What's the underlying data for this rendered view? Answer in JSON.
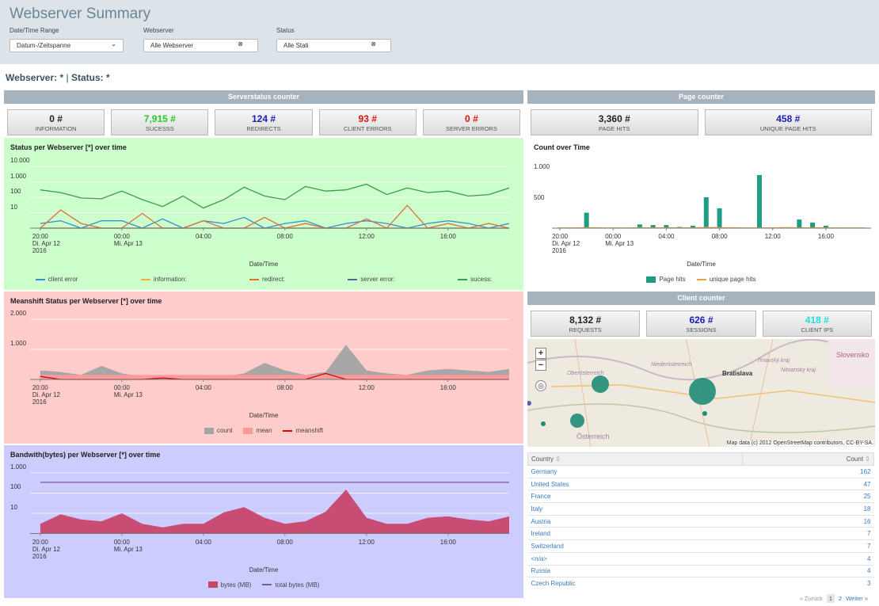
{
  "header": {
    "title": "Webserver Summary",
    "filters": [
      {
        "label": "Date/Time Range",
        "value": "Datum-/Zeitspanne"
      },
      {
        "label": "Webserver",
        "value": "Alle Webserver"
      },
      {
        "label": "Status",
        "value": "Alle Stati"
      }
    ]
  },
  "summary_line": [
    "Webserver: *",
    "|",
    "Status: *"
  ],
  "panels": {
    "serverstatus": "Serverstatus counter",
    "page": "Page counter",
    "client": "Client counter"
  },
  "counters": {
    "serverstatus": [
      {
        "value": "0",
        "unit": "#",
        "label": "INFORMATION",
        "color": "#222222"
      },
      {
        "value": "7,915",
        "unit": "#",
        "label": "SUCESSS",
        "color": "#22cc22"
      },
      {
        "value": "124",
        "unit": "#",
        "label": "REDIRECTS",
        "color": "#1a1ab8"
      },
      {
        "value": "93",
        "unit": "#",
        "label": "CLIENT ERRORS",
        "color": "#e01010"
      },
      {
        "value": "0",
        "unit": "#",
        "label": "SERVER ERRORS",
        "color": "#e01010"
      }
    ],
    "page": [
      {
        "value": "3,360",
        "unit": "#",
        "label": "PAGE HITS",
        "color": "#222222"
      },
      {
        "value": "458",
        "unit": "#",
        "label": "UNIQUE PAGE HITS",
        "color": "#1a1ab8"
      }
    ],
    "client": [
      {
        "value": "8,132",
        "unit": "#",
        "label": "REQUESTS",
        "color": "#222222"
      },
      {
        "value": "626",
        "unit": "#",
        "label": "SESSIONS",
        "color": "#1a1ab8"
      },
      {
        "value": "418",
        "unit": "#",
        "label": "CLIENT IPS",
        "color": "#22dddd"
      }
    ]
  },
  "chart_data": [
    {
      "type": "line",
      "title": "Status per Webserver [*] over time",
      "x_label": "Date/Time",
      "background": "#ccffcc",
      "log_y": true,
      "grid": true,
      "x": [
        20,
        21,
        22,
        23,
        24,
        25,
        26,
        27,
        28,
        29,
        30,
        31,
        32,
        33,
        34,
        35,
        36,
        37,
        38,
        39,
        40,
        41,
        42,
        43
      ],
      "xlim": [
        19.5,
        43
      ],
      "xticks": [
        {
          "value": 20,
          "label": "20:00\nDi. Apr 12\n2016"
        },
        {
          "value": 24,
          "label": "00:00\nMi. Apr 13"
        },
        {
          "value": 28,
          "label": "04:00"
        },
        {
          "value": 32,
          "label": "08:00"
        },
        {
          "value": 36,
          "label": "12:00"
        },
        {
          "value": 40,
          "label": "16:00"
        }
      ],
      "ylim": [
        1,
        10000
      ],
      "yticks": [
        10,
        100,
        {
          "value": 1000,
          "label": "1.000"
        },
        {
          "value": 10000,
          "label": "10.000"
        }
      ],
      "series": [
        {
          "name": "client error",
          "kind": "line",
          "color": "#3a8fd0",
          "values": [
            2,
            3,
            1,
            3,
            3,
            1,
            4,
            1,
            3,
            2,
            5,
            1,
            2,
            3,
            1,
            2,
            3,
            2,
            1,
            2,
            3,
            2,
            1,
            2
          ]
        },
        {
          "name": "information:",
          "kind": "line",
          "color": "#e8b53a",
          "values": [
            0,
            0,
            0,
            0,
            0,
            0,
            0,
            0,
            0,
            0,
            0,
            0,
            0,
            0,
            0,
            0,
            0,
            0,
            0,
            0,
            0,
            0,
            0,
            0
          ]
        },
        {
          "name": "redirect:",
          "kind": "line",
          "color": "#e0703a",
          "values": [
            1,
            15,
            2,
            1,
            1,
            9,
            1,
            1,
            3,
            1,
            1,
            5,
            1,
            2,
            1,
            1,
            4,
            1,
            30,
            1,
            2,
            1,
            2,
            1
          ]
        },
        {
          "name": "server error:",
          "kind": "line",
          "color": "#5a5fa8",
          "values": [
            0,
            0,
            0,
            0,
            0,
            0,
            0,
            0,
            0,
            0,
            0,
            0,
            0,
            0,
            0,
            0,
            0,
            0,
            0,
            0,
            0,
            0,
            0,
            0
          ]
        },
        {
          "name": "sucess:",
          "kind": "line",
          "color": "#3a9b50",
          "values": [
            300,
            200,
            90,
            80,
            250,
            70,
            25,
            120,
            20,
            70,
            450,
            120,
            70,
            500,
            250,
            300,
            700,
            150,
            400,
            200,
            250,
            120,
            150,
            400
          ]
        }
      ]
    },
    {
      "type": "line",
      "title": "Meanshift Status per Webserver [*] over time",
      "x_label": "Date/Time",
      "background": "#ffcccc",
      "log_y": false,
      "grid": true,
      "x": [
        20,
        21,
        22,
        23,
        24,
        25,
        26,
        27,
        28,
        29,
        30,
        31,
        32,
        33,
        34,
        35,
        36,
        37,
        38,
        39,
        40,
        41,
        42,
        43
      ],
      "xlim": [
        19.5,
        43
      ],
      "xticks": [
        {
          "value": 20,
          "label": "20:00\nDi. Apr 12\n2016"
        },
        {
          "value": 24,
          "label": "00:00\nMi. Apr 13"
        },
        {
          "value": 28,
          "label": "04:00"
        },
        {
          "value": 32,
          "label": "08:00"
        },
        {
          "value": 36,
          "label": "12:00"
        },
        {
          "value": 40,
          "label": "16:00"
        }
      ],
      "ylim": [
        0,
        2200
      ],
      "yticks": [
        {
          "value": 1000,
          "label": "1.000"
        },
        {
          "value": 2000,
          "label": "2.000"
        }
      ],
      "series": [
        {
          "name": "count",
          "kind": "area",
          "color": "#a3a3a3",
          "values": [
            300,
            250,
            150,
            450,
            200,
            100,
            100,
            150,
            120,
            100,
            200,
            550,
            300,
            150,
            250,
            1150,
            300,
            200,
            150,
            300,
            350,
            300,
            250,
            350
          ]
        },
        {
          "name": "mean",
          "kind": "area",
          "color": "#ff9999",
          "values": [
            150,
            150,
            150,
            150,
            150,
            150,
            150,
            150,
            150,
            150,
            150,
            150,
            150,
            150,
            150,
            150,
            150,
            150,
            150,
            150,
            150,
            150,
            150,
            150
          ]
        },
        {
          "name": "meanshift",
          "kind": "line",
          "color": "#e00000",
          "values": [
            100,
            0,
            0,
            0,
            0,
            0,
            50,
            0,
            0,
            0,
            0,
            0,
            0,
            0,
            200,
            0,
            0,
            0,
            0,
            0,
            0,
            0,
            0,
            0
          ]
        }
      ]
    },
    {
      "type": "line",
      "title": "Bandwith(bytes) per Webserver [*] over time",
      "x_label": "Date/Time",
      "background": "#ccccff",
      "log_y": true,
      "grid": true,
      "x": [
        20,
        21,
        22,
        23,
        24,
        25,
        26,
        27,
        28,
        29,
        30,
        31,
        32,
        33,
        34,
        35,
        36,
        37,
        38,
        39,
        40,
        41,
        42,
        43
      ],
      "xlim": [
        19.5,
        43
      ],
      "xticks": [
        {
          "value": 20,
          "label": "20:00\nDi. Apr 12\n2016"
        },
        {
          "value": 24,
          "label": "00:00\nMi. Apr 13"
        },
        {
          "value": 28,
          "label": "04:00"
        },
        {
          "value": 32,
          "label": "08:00"
        },
        {
          "value": 36,
          "label": "12:00"
        },
        {
          "value": 40,
          "label": "16:00"
        }
      ],
      "ylim": [
        1,
        3000
      ],
      "yticks": [
        10,
        100,
        {
          "value": 1000,
          "label": "1.000"
        }
      ],
      "series": [
        {
          "name": "bytes (MB)",
          "kind": "area",
          "color": "#c8456a",
          "values": [
            3,
            9,
            5,
            4,
            10,
            3,
            2,
            3,
            3,
            11,
            20,
            6,
            3,
            4,
            12,
            150,
            6,
            3,
            3,
            6,
            7,
            5,
            4,
            7
          ]
        },
        {
          "name": "total bytes (MB)",
          "kind": "line",
          "color": "#7a5a9a",
          "values": [
            340,
            340,
            340,
            340,
            340,
            340,
            340,
            340,
            340,
            340,
            340,
            340,
            340,
            340,
            340,
            340,
            340,
            340,
            340,
            340,
            340,
            340,
            340,
            340
          ]
        }
      ]
    },
    {
      "type": "bar",
      "title": "Count over Time",
      "x_label": "Date/Time",
      "background": "#ffffff",
      "log_y": false,
      "grid": false,
      "x": [
        20,
        21,
        22,
        23,
        24,
        25,
        26,
        27,
        28,
        29,
        30,
        31,
        32,
        33,
        34,
        35,
        36,
        37,
        38,
        39,
        40,
        41,
        42,
        43
      ],
      "xlim": [
        19.4,
        43.4
      ],
      "xticks": [
        {
          "value": 20,
          "label": "20:00\nDi. Apr 12\n2016"
        },
        {
          "value": 24,
          "label": "00:00\nMi. Apr 13"
        },
        {
          "value": 28,
          "label": "04:00"
        },
        {
          "value": 32,
          "label": "08:00"
        },
        {
          "value": 36,
          "label": "12:00"
        },
        {
          "value": 40,
          "label": "16:00"
        }
      ],
      "ylim": [
        0,
        1130
      ],
      "yticks": [
        500,
        {
          "value": 1000,
          "label": "1.000"
        }
      ],
      "series": [
        {
          "name": "Page hits",
          "kind": "bar",
          "color": "#1f9c84",
          "values": [
            10,
            0,
            250,
            0,
            0,
            0,
            60,
            50,
            50,
            20,
            40,
            500,
            320,
            0,
            0,
            860,
            0,
            0,
            140,
            90,
            40,
            10,
            0,
            0
          ]
        },
        {
          "name": "unique page hits",
          "kind": "line",
          "color": "#e8a23a",
          "values": [
            5,
            3,
            8,
            4,
            3,
            2,
            6,
            5,
            7,
            4,
            5,
            10,
            8,
            6,
            3,
            2,
            4,
            9,
            5,
            6,
            4,
            3,
            2,
            3
          ]
        }
      ]
    }
  ],
  "map": {
    "places": [
      "Slovensko",
      "Trnavský kraj",
      "Nitriansky kraj",
      "Bratislava",
      "Niederösterreich",
      "Oberösterreich",
      "Österreich"
    ],
    "attribution": "Map data (c) 2012 OpenStreetMap contributors, CC-BY-SA."
  },
  "table": {
    "columns": [
      "Country",
      "Count"
    ],
    "rows": [
      [
        "Germany",
        "162"
      ],
      [
        "United States",
        "47"
      ],
      [
        "France",
        "25"
      ],
      [
        "Italy",
        "18"
      ],
      [
        "Austria",
        "16"
      ],
      [
        "Ireland",
        "7"
      ],
      [
        "Switzerland",
        "7"
      ],
      [
        "<n/a>",
        "4"
      ],
      [
        "Russia",
        "4"
      ],
      [
        "Czech Republic",
        "3"
      ]
    ]
  },
  "pagination": [
    "« Zurück",
    "1",
    "2",
    "Weiter »"
  ]
}
